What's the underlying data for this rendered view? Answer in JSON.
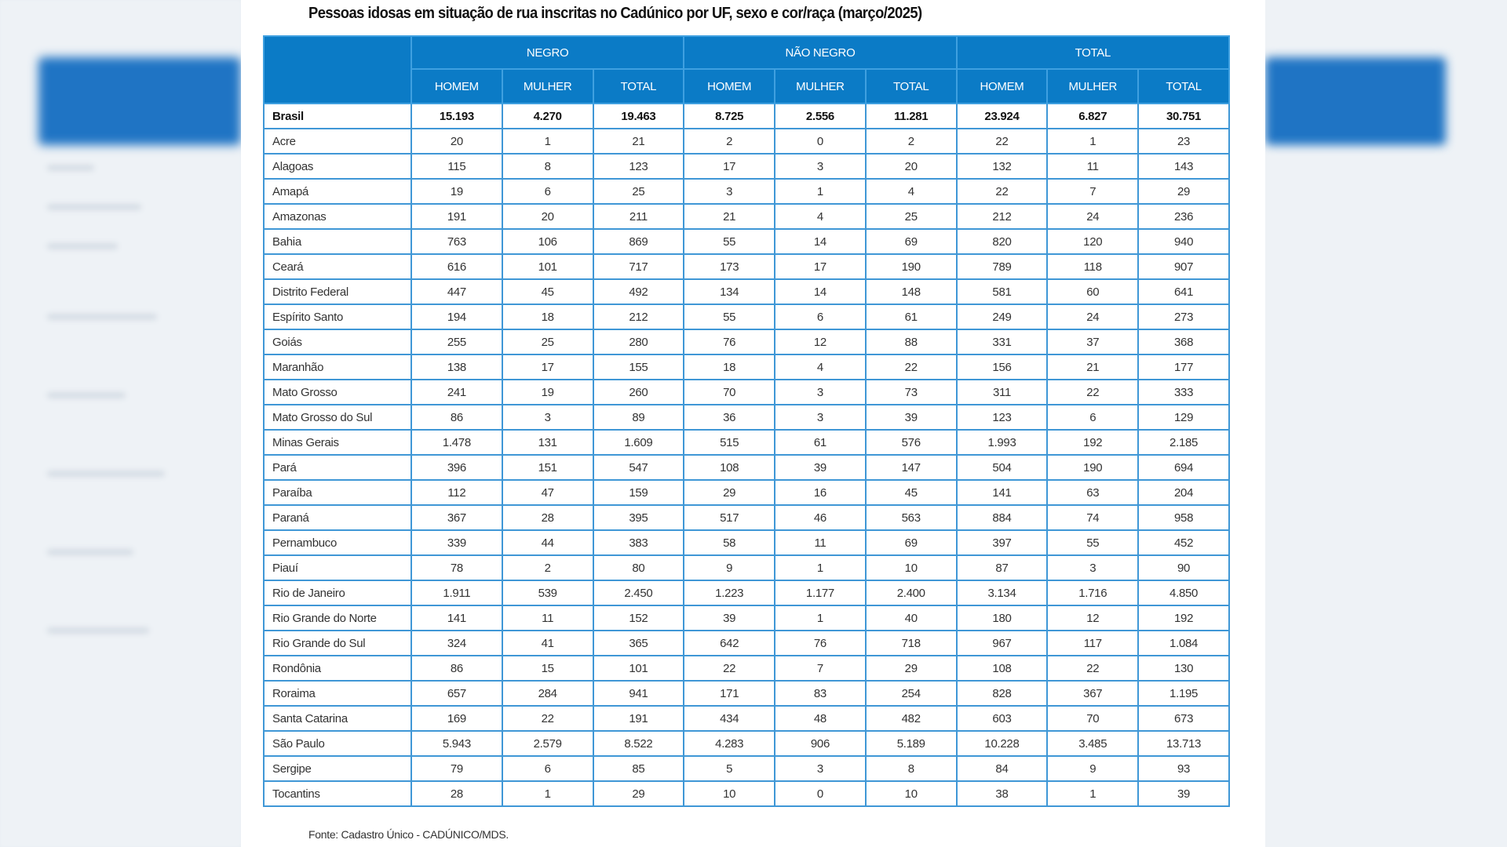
{
  "title": "Pessoas idosas em situação de rua inscritas no Cadúnico por UF, sexo e cor/raça (março/2025)",
  "colors": {
    "header_bg": "#0b7bc6",
    "border": "#3f97d6"
  },
  "table": {
    "groups": [
      "NEGRO",
      "NÃO NEGRO",
      "TOTAL"
    ],
    "subheaders": [
      "HOMEM",
      "MULHER",
      "TOTAL",
      "HOMEM",
      "MULHER",
      "TOTAL",
      "HOMEM",
      "MULHER",
      "TOTAL"
    ],
    "rows": [
      {
        "uf": "Brasil",
        "values": [
          "15.193",
          "4.270",
          "19.463",
          "8.725",
          "2.556",
          "11.281",
          "23.924",
          "6.827",
          "30.751"
        ]
      },
      {
        "uf": "Acre",
        "values": [
          "20",
          "1",
          "21",
          "2",
          "0",
          "2",
          "22",
          "1",
          "23"
        ]
      },
      {
        "uf": "Alagoas",
        "values": [
          "115",
          "8",
          "123",
          "17",
          "3",
          "20",
          "132",
          "11",
          "143"
        ]
      },
      {
        "uf": "Amapá",
        "values": [
          "19",
          "6",
          "25",
          "3",
          "1",
          "4",
          "22",
          "7",
          "29"
        ]
      },
      {
        "uf": "Amazonas",
        "values": [
          "191",
          "20",
          "211",
          "21",
          "4",
          "25",
          "212",
          "24",
          "236"
        ]
      },
      {
        "uf": "Bahia",
        "values": [
          "763",
          "106",
          "869",
          "55",
          "14",
          "69",
          "820",
          "120",
          "940"
        ]
      },
      {
        "uf": "Ceará",
        "values": [
          "616",
          "101",
          "717",
          "173",
          "17",
          "190",
          "789",
          "118",
          "907"
        ]
      },
      {
        "uf": "Distrito Federal",
        "values": [
          "447",
          "45",
          "492",
          "134",
          "14",
          "148",
          "581",
          "60",
          "641"
        ]
      },
      {
        "uf": "Espírito Santo",
        "values": [
          "194",
          "18",
          "212",
          "55",
          "6",
          "61",
          "249",
          "24",
          "273"
        ]
      },
      {
        "uf": "Goiás",
        "values": [
          "255",
          "25",
          "280",
          "76",
          "12",
          "88",
          "331",
          "37",
          "368"
        ]
      },
      {
        "uf": "Maranhão",
        "values": [
          "138",
          "17",
          "155",
          "18",
          "4",
          "22",
          "156",
          "21",
          "177"
        ]
      },
      {
        "uf": "Mato Grosso",
        "values": [
          "241",
          "19",
          "260",
          "70",
          "3",
          "73",
          "311",
          "22",
          "333"
        ]
      },
      {
        "uf": "Mato Grosso do Sul",
        "values": [
          "86",
          "3",
          "89",
          "36",
          "3",
          "39",
          "123",
          "6",
          "129"
        ]
      },
      {
        "uf": "Minas Gerais",
        "values": [
          "1.478",
          "131",
          "1.609",
          "515",
          "61",
          "576",
          "1.993",
          "192",
          "2.185"
        ]
      },
      {
        "uf": "Pará",
        "values": [
          "396",
          "151",
          "547",
          "108",
          "39",
          "147",
          "504",
          "190",
          "694"
        ]
      },
      {
        "uf": "Paraíba",
        "values": [
          "112",
          "47",
          "159",
          "29",
          "16",
          "45",
          "141",
          "63",
          "204"
        ]
      },
      {
        "uf": "Paraná",
        "values": [
          "367",
          "28",
          "395",
          "517",
          "46",
          "563",
          "884",
          "74",
          "958"
        ]
      },
      {
        "uf": "Pernambuco",
        "values": [
          "339",
          "44",
          "383",
          "58",
          "11",
          "69",
          "397",
          "55",
          "452"
        ]
      },
      {
        "uf": "Piauí",
        "values": [
          "78",
          "2",
          "80",
          "9",
          "1",
          "10",
          "87",
          "3",
          "90"
        ]
      },
      {
        "uf": "Rio de Janeiro",
        "values": [
          "1.911",
          "539",
          "2.450",
          "1.223",
          "1.177",
          "2.400",
          "3.134",
          "1.716",
          "4.850"
        ]
      },
      {
        "uf": "Rio Grande do Norte",
        "values": [
          "141",
          "11",
          "152",
          "39",
          "1",
          "40",
          "180",
          "12",
          "192"
        ]
      },
      {
        "uf": "Rio Grande do Sul",
        "values": [
          "324",
          "41",
          "365",
          "642",
          "76",
          "718",
          "967",
          "117",
          "1.084"
        ]
      },
      {
        "uf": "Rondônia",
        "values": [
          "86",
          "15",
          "101",
          "22",
          "7",
          "29",
          "108",
          "22",
          "130"
        ]
      },
      {
        "uf": "Roraima",
        "values": [
          "657",
          "284",
          "941",
          "171",
          "83",
          "254",
          "828",
          "367",
          "1.195"
        ]
      },
      {
        "uf": "Santa Catarina",
        "values": [
          "169",
          "22",
          "191",
          "434",
          "48",
          "482",
          "603",
          "70",
          "673"
        ]
      },
      {
        "uf": "São Paulo",
        "values": [
          "5.943",
          "2.579",
          "8.522",
          "4.283",
          "906",
          "5.189",
          "10.228",
          "3.485",
          "13.713"
        ]
      },
      {
        "uf": "Sergipe",
        "values": [
          "79",
          "6",
          "85",
          "5",
          "3",
          "8",
          "84",
          "9",
          "93"
        ]
      },
      {
        "uf": "Tocantins",
        "values": [
          "28",
          "1",
          "29",
          "10",
          "0",
          "10",
          "38",
          "1",
          "39"
        ]
      }
    ]
  },
  "footer": "Fonte: Cadastro Único - CADÚNICO/MDS."
}
